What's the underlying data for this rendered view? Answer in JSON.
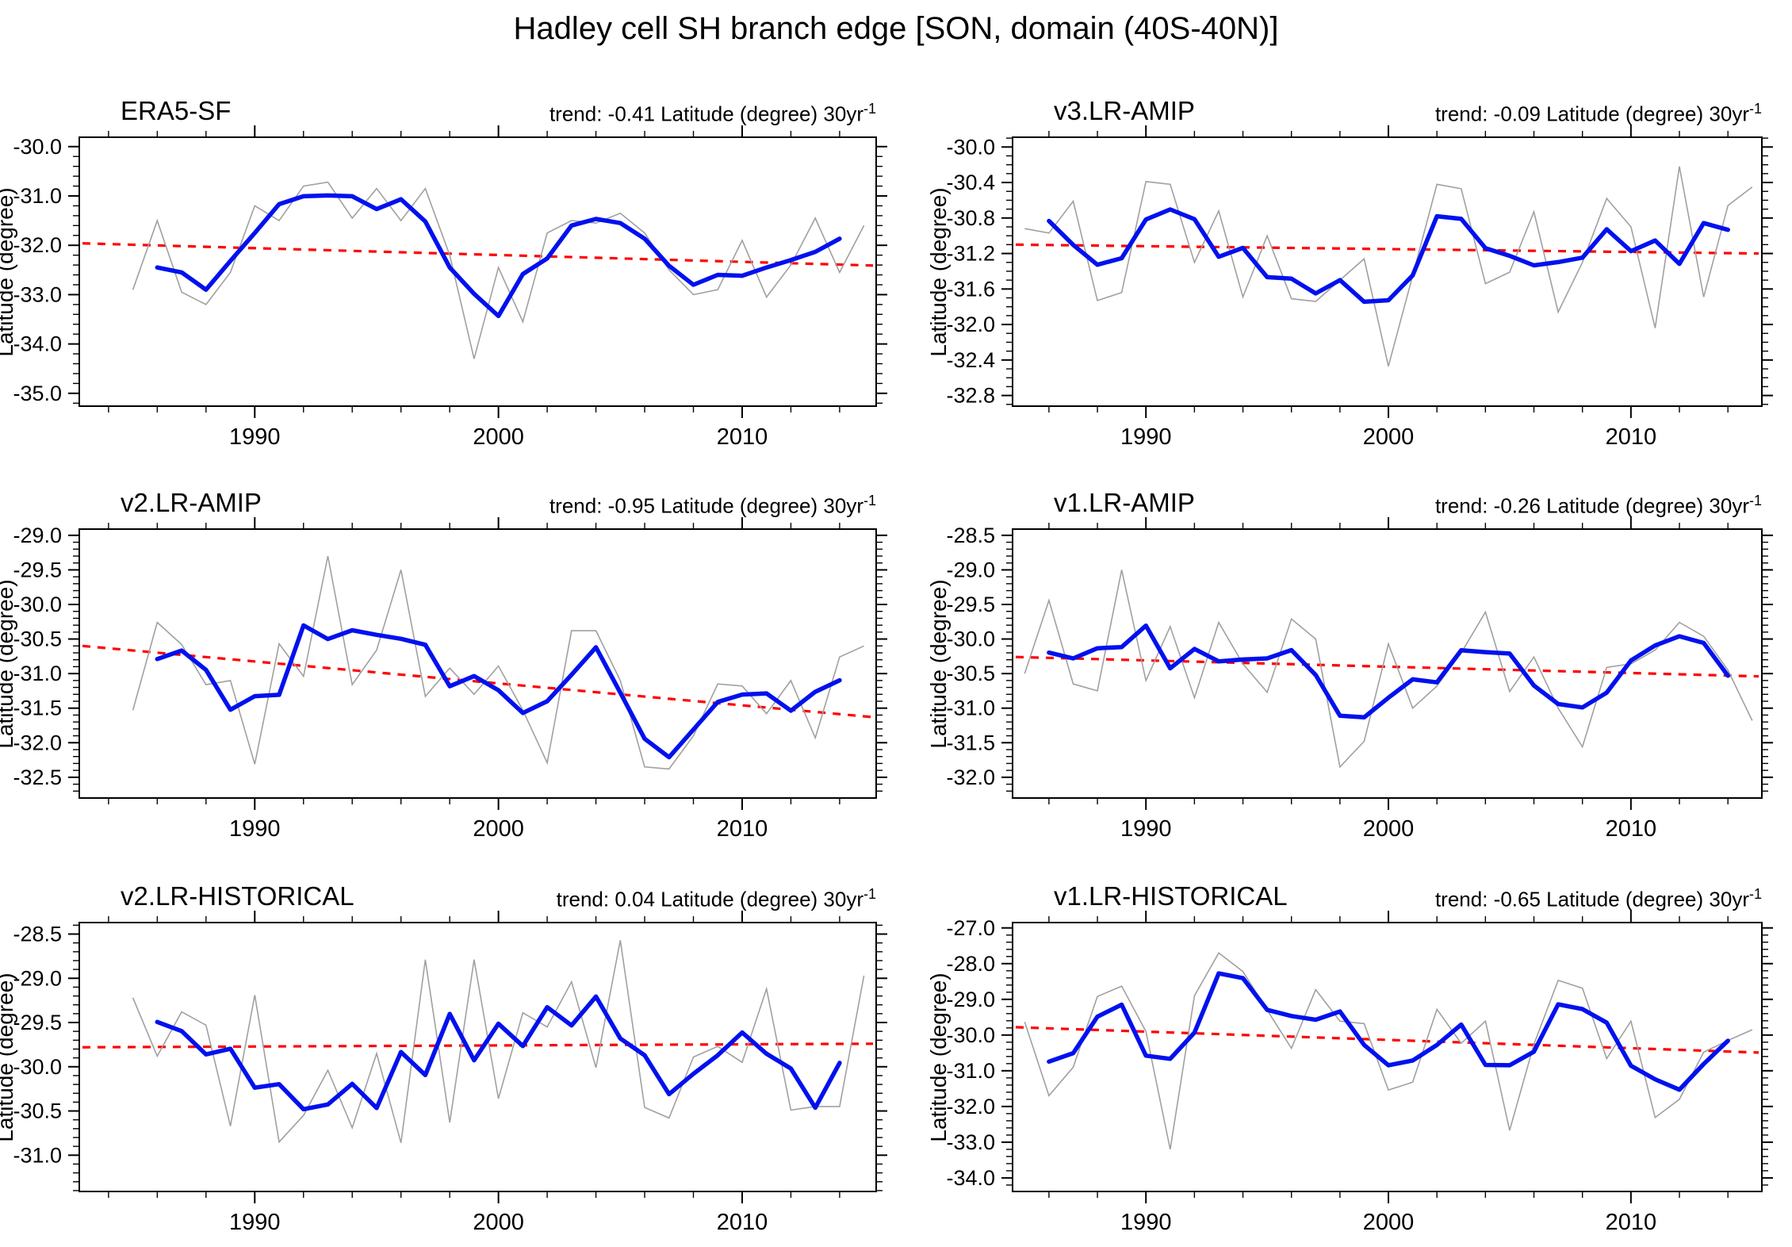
{
  "title": "Hadley cell SH branch edge [SON, domain (40S-40N)]",
  "chart_data": [
    {
      "id": "era5-sf",
      "type": "line",
      "panel_title": "ERA5-SF",
      "trend_text": "trend: -0.41 Latitude (degree) 30yr",
      "trend_superscript": "-1",
      "ylabel": "Latitude (degree)",
      "x_start_year": 1985,
      "x_tick_years": [
        1990,
        2000,
        2010
      ],
      "x_minor_step": 2,
      "ylim_top": -29.81,
      "ylim_bottom": -35.26,
      "y_tick_labels": [
        "-30.0",
        "-31.0",
        "-32.0",
        "-33.0",
        "-34.0",
        "-35.0"
      ],
      "y_minor_step": 0.2,
      "annual_series": [
        -32.9,
        -31.5,
        -32.95,
        -33.2,
        -32.55,
        -31.2,
        -31.5,
        -30.8,
        -30.72,
        -31.45,
        -30.85,
        -31.5,
        -30.85,
        -32.2,
        -34.3,
        -32.45,
        -33.55,
        -31.75,
        -31.5,
        -31.55,
        -31.35,
        -31.75,
        -32.5,
        -33.0,
        -32.9,
        -31.9,
        -33.05,
        -32.4,
        -31.45,
        -32.55,
        -31.6
      ],
      "smoothed_series_note": "3-year running mean of annual_series, computed at render time",
      "trend_line": {
        "start": -31.96,
        "end": -32.41
      },
      "colors": {
        "annual": "#a0a0a0",
        "smoothed": "#0011ee",
        "trend": "#ff0000"
      }
    },
    {
      "id": "v3-lr-amip",
      "type": "line",
      "panel_title": "v3.LR-AMIP",
      "trend_text": "trend: -0.09 Latitude (degree) 30yr",
      "trend_superscript": "-1",
      "ylabel": "Latitude (degree)",
      "x_start_year": 1985,
      "x_tick_years": [
        1990,
        2000,
        2010
      ],
      "x_minor_step": 2,
      "ylim_top": -29.89,
      "ylim_bottom": -32.92,
      "y_tick_labels": [
        "-30.0",
        "-30.4",
        "-30.8",
        "-31.2",
        "-31.6",
        "-32.0",
        "-32.4",
        "-32.8"
      ],
      "y_minor_step": 0.1,
      "annual_series": [
        -30.92,
        -30.97,
        -30.61,
        -31.73,
        -31.64,
        -30.39,
        -30.42,
        -31.3,
        -30.72,
        -31.69,
        -31.0,
        -31.71,
        -31.74,
        -31.5,
        -31.26,
        -32.47,
        -31.45,
        -30.42,
        -30.47,
        -31.54,
        -31.41,
        -30.73,
        -31.86,
        -31.3,
        -30.58,
        -30.9,
        -32.04,
        -30.22,
        -31.69,
        -30.66,
        -30.45
      ],
      "smoothed_series_note": "3-year running mean of annual_series, computed at render time",
      "trend_line": {
        "start": -31.1,
        "end": -31.2
      },
      "colors": {
        "annual": "#a0a0a0",
        "smoothed": "#0011ee",
        "trend": "#ff0000"
      }
    },
    {
      "id": "v2-lr-amip",
      "type": "line",
      "panel_title": "v2.LR-AMIP",
      "trend_text": "trend: -0.95 Latitude (degree) 30yr",
      "trend_superscript": "-1",
      "ylabel": "Latitude (degree)",
      "x_start_year": 1985,
      "x_tick_years": [
        1990,
        2000,
        2010
      ],
      "x_minor_step": 2,
      "ylim_top": -28.91,
      "ylim_bottom": -32.8,
      "y_tick_labels": [
        "-29.0",
        "-29.5",
        "-30.0",
        "-30.5",
        "-31.0",
        "-31.5",
        "-32.0",
        "-32.5"
      ],
      "y_minor_step": 0.1,
      "annual_series": [
        -31.53,
        -30.26,
        -30.58,
        -31.16,
        -31.1,
        -32.31,
        -30.57,
        -31.04,
        -29.3,
        -31.16,
        -30.66,
        -29.5,
        -31.33,
        -30.92,
        -31.3,
        -30.89,
        -31.53,
        -32.29,
        -30.38,
        -30.38,
        -31.1,
        -32.35,
        -32.38,
        -31.9,
        -31.15,
        -31.18,
        -31.58,
        -31.1,
        -31.93,
        -30.76,
        -30.6
      ],
      "smoothed_series_note": "3-year running mean of annual_series, computed at render time",
      "trend_line": {
        "start": -30.6,
        "end": -31.63
      },
      "colors": {
        "annual": "#a0a0a0",
        "smoothed": "#0011ee",
        "trend": "#ff0000"
      }
    },
    {
      "id": "v1-lr-amip",
      "type": "line",
      "panel_title": "v1.LR-AMIP",
      "trend_text": "trend: -0.26 Latitude (degree) 30yr",
      "trend_superscript": "-1",
      "ylabel": "Latitude (degree)",
      "x_start_year": 1985,
      "x_tick_years": [
        1990,
        2000,
        2010
      ],
      "x_minor_step": 2,
      "ylim_top": -28.41,
      "ylim_bottom": -32.3,
      "y_tick_labels": [
        "-28.5",
        "-29.0",
        "-29.5",
        "-30.0",
        "-30.5",
        "-31.0",
        "-31.5",
        "-32.0"
      ],
      "y_minor_step": 0.1,
      "annual_series": [
        -30.5,
        -29.44,
        -30.65,
        -30.75,
        -29.0,
        -30.6,
        -29.82,
        -30.85,
        -29.76,
        -30.36,
        -30.77,
        -29.71,
        -30.0,
        -31.85,
        -31.48,
        -30.07,
        -31.0,
        -30.68,
        -30.2,
        -29.61,
        -30.76,
        -30.26,
        -31.0,
        -31.56,
        -30.41,
        -30.36,
        -30.16,
        -29.76,
        -29.96,
        -30.45,
        -31.18
      ],
      "smoothed_series_note": "3-year running mean of annual_series, computed at render time",
      "trend_line": {
        "start": -30.26,
        "end": -30.54
      },
      "colors": {
        "annual": "#a0a0a0",
        "smoothed": "#0011ee",
        "trend": "#ff0000"
      }
    },
    {
      "id": "v2-lr-historical",
      "type": "line",
      "panel_title": "v2.LR-HISTORICAL",
      "trend_text": "trend: 0.04 Latitude (degree) 30yr",
      "trend_superscript": "-1",
      "ylabel": "Latitude (degree)",
      "x_start_year": 1985,
      "x_tick_years": [
        1990,
        2000,
        2010
      ],
      "x_minor_step": 2,
      "ylim_top": -28.37,
      "ylim_bottom": -31.41,
      "y_tick_labels": [
        "-28.5",
        "-29.0",
        "-29.5",
        "-30.0",
        "-30.5",
        "-31.0"
      ],
      "y_minor_step": 0.1,
      "annual_series": [
        -29.22,
        -29.88,
        -29.38,
        -29.53,
        -30.67,
        -29.19,
        -30.85,
        -30.55,
        -30.04,
        -30.69,
        -29.85,
        -30.86,
        -28.79,
        -30.63,
        -28.79,
        -30.36,
        -29.39,
        -29.55,
        -29.04,
        -30.01,
        -28.57,
        -30.46,
        -30.58,
        -29.89,
        -29.77,
        -29.95,
        -29.12,
        -30.49,
        -30.45,
        -30.45,
        -28.97
      ],
      "smoothed_series_note": "3-year running mean of annual_series, computed at render time",
      "trend_line": {
        "start": -29.78,
        "end": -29.74
      },
      "colors": {
        "annual": "#a0a0a0",
        "smoothed": "#0011ee",
        "trend": "#ff0000"
      }
    },
    {
      "id": "v1-lr-historical",
      "type": "line",
      "panel_title": "v1.LR-HISTORICAL",
      "trend_text": "trend: -0.65 Latitude (degree) 30yr",
      "trend_superscript": "-1",
      "ylabel": "Latitude (degree)",
      "x_start_year": 1985,
      "x_tick_years": [
        1990,
        2000,
        2010
      ],
      "x_minor_step": 2,
      "ylim_top": -26.85,
      "ylim_bottom": -34.38,
      "y_tick_labels": [
        "-27.0",
        "-28.0",
        "-29.0",
        "-30.0",
        "-31.0",
        "-32.0",
        "-33.0",
        "-34.0"
      ],
      "y_minor_step": 0.2,
      "annual_series": [
        -29.63,
        -31.7,
        -30.9,
        -28.92,
        -28.63,
        -29.9,
        -33.2,
        -28.9,
        -27.7,
        -28.22,
        -29.3,
        -30.37,
        -28.73,
        -29.61,
        -29.68,
        -31.54,
        -31.32,
        -29.28,
        -30.23,
        -29.61,
        -32.67,
        -30.26,
        -28.47,
        -28.69,
        -30.66,
        -29.61,
        -32.31,
        -31.8,
        -30.48,
        -30.15,
        -29.85
      ],
      "smoothed_series_note": "3-year running mean of annual_series, computed at render time",
      "trend_line": {
        "start": -29.78,
        "end": -30.49
      },
      "colors": {
        "annual": "#a0a0a0",
        "smoothed": "#0011ee",
        "trend": "#ff0000"
      }
    }
  ]
}
